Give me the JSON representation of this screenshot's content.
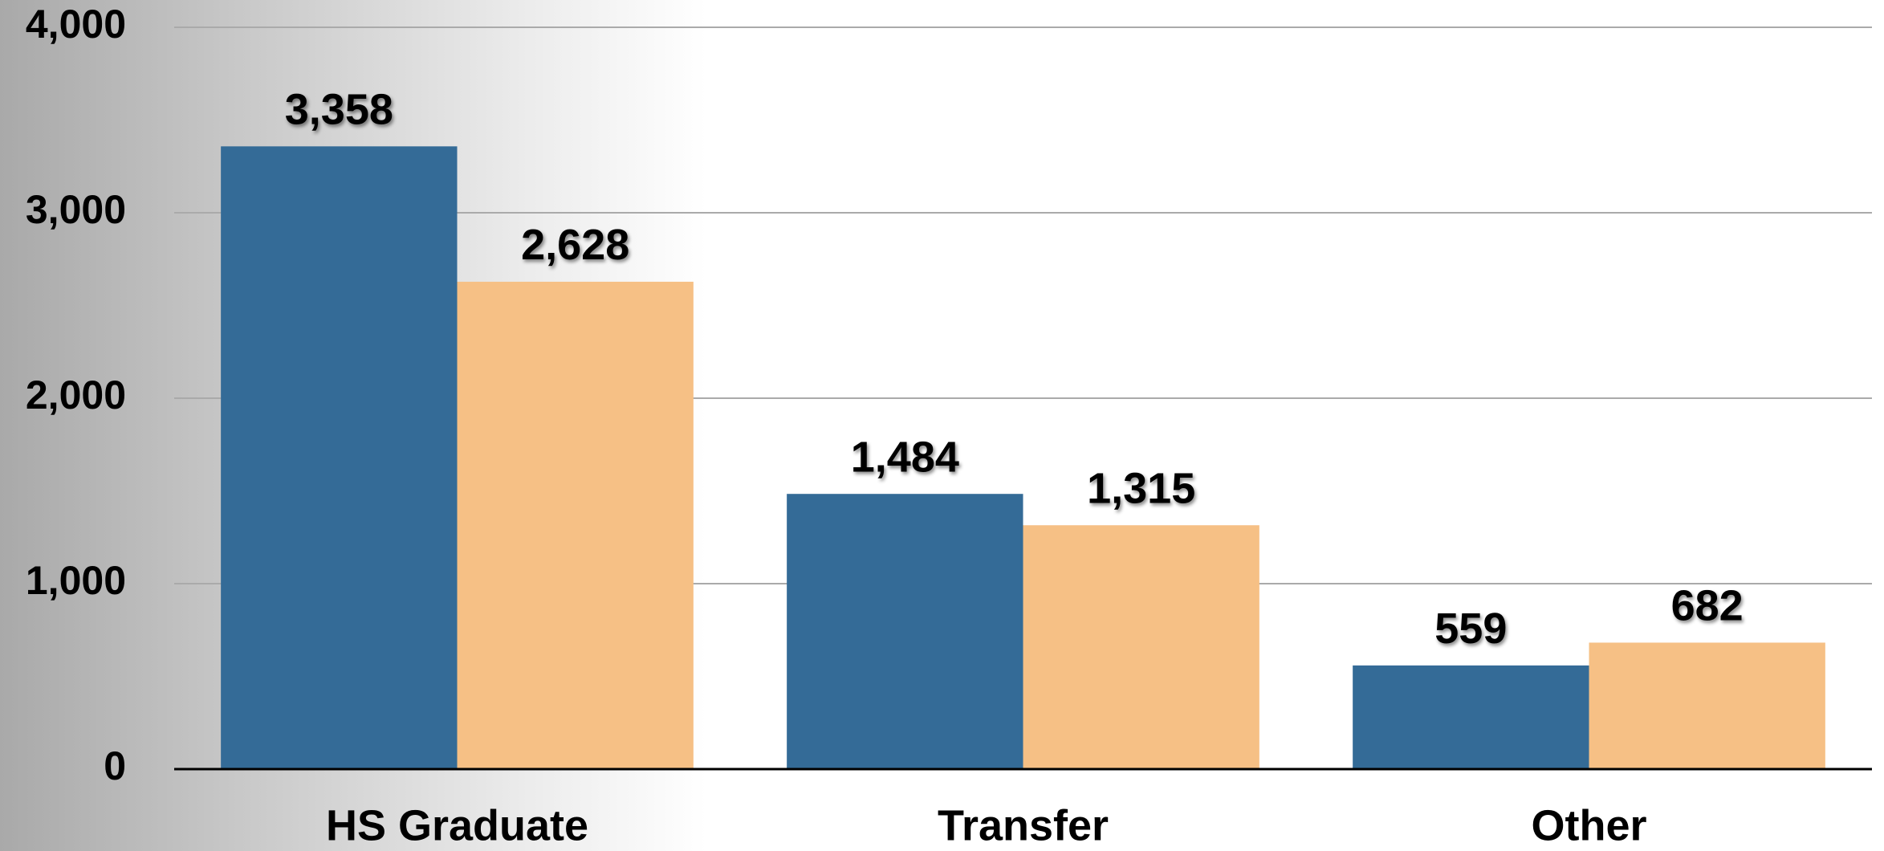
{
  "chart_data": {
    "type": "bar",
    "categories": [
      "HS Graduate",
      "Transfer",
      "Other"
    ],
    "series": [
      {
        "color": "#346b97",
        "values": [
          3358,
          1484,
          559
        ],
        "value_labels": [
          "3,358",
          "1,484",
          "559"
        ]
      },
      {
        "color": "#f6c085",
        "values": [
          2628,
          1315,
          682
        ],
        "value_labels": [
          "2,628",
          "1,315",
          "682"
        ]
      }
    ],
    "ylim": [
      0,
      4000
    ],
    "yticks": [
      0,
      {
        "value": 1000,
        "label": "1,000"
      },
      {
        "value": 2000,
        "label": "2,000"
      },
      {
        "value": 3000,
        "label": "3,000"
      },
      {
        "value": 4000,
        "label": "4,000"
      }
    ],
    "grid": true
  }
}
